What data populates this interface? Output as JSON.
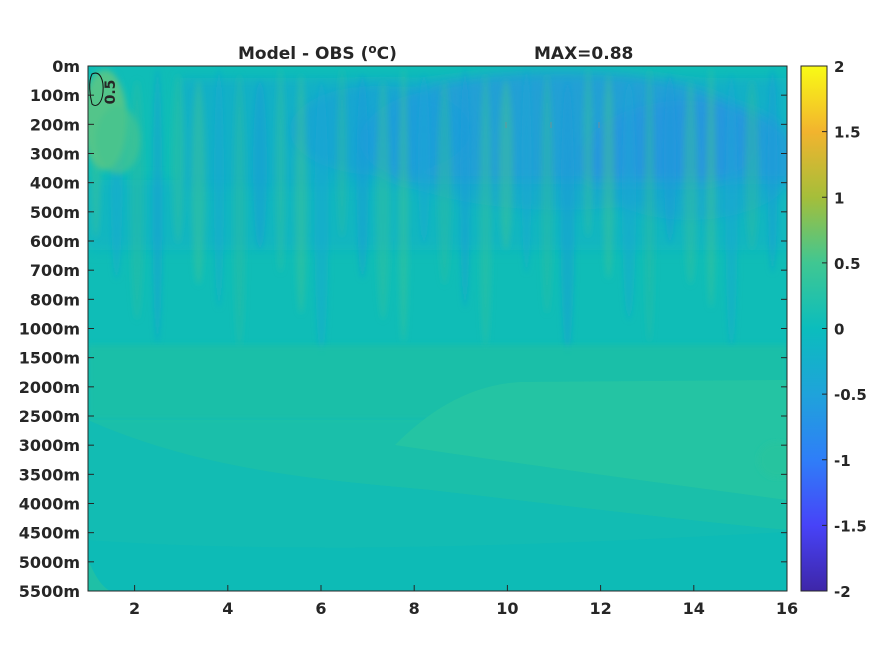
{
  "chart_data": {
    "type": "heatmap",
    "title": "Model - OBS (",
    "title_unit": "o",
    "title_suffix": "C)",
    "max_label": "MAX=0.88",
    "x_ticks": [
      2,
      4,
      6,
      8,
      10,
      12,
      14,
      16
    ],
    "xlim": [
      1,
      16
    ],
    "y_tick_labels": [
      "0m",
      "100m",
      "200m",
      "300m",
      "400m",
      "500m",
      "600m",
      "700m",
      "800m",
      "1000m",
      "1500m",
      "2000m",
      "2500m",
      "3000m",
      "3500m",
      "4000m",
      "4500m",
      "5000m",
      "5500m"
    ],
    "colorbar": {
      "range": [
        -2,
        2
      ],
      "ticks": [
        2,
        1.5,
        1,
        0.5,
        0,
        -0.5,
        -1,
        -1.5,
        -2
      ],
      "colormap": [
        "#3e26a8",
        "#4743f8",
        "#2f7ef8",
        "#1fa3da",
        "#0bbdbd",
        "#40c792",
        "#a5be3a",
        "#f2b42e",
        "#f9fb15"
      ]
    },
    "contour_label": "0.5",
    "background_value": 0.1,
    "regions": [
      {
        "name": "upper-ocean-negative",
        "depth_range": [
          "100m",
          "300m"
        ],
        "x_range": [
          8.5,
          16
        ],
        "value": -0.25
      },
      {
        "name": "upper-ocean-positive",
        "depth_range": [
          "0m",
          "200m"
        ],
        "x_range": [
          1,
          2
        ],
        "value": 0.5
      },
      {
        "name": "deep-positive",
        "depth_range": [
          "1000m",
          "3500m"
        ],
        "x_range": [
          1,
          16
        ],
        "value": 0.2
      },
      {
        "name": "abyssal-band",
        "depth_range": [
          "2500m",
          "5500m"
        ],
        "x_range": [
          1,
          16
        ],
        "value": 0.1
      }
    ]
  }
}
